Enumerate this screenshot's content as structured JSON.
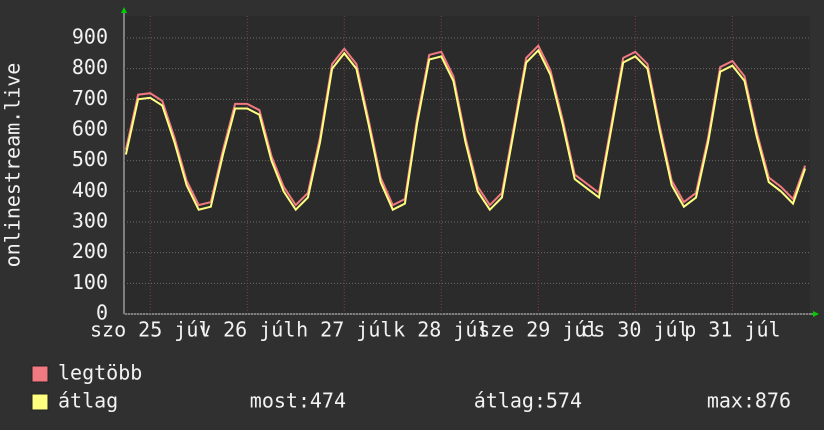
{
  "chart_data": {
    "type": "line",
    "ylabel": "onlinestream.live",
    "xlim": [
      25.23,
      32.3
    ],
    "ylim": [
      0,
      900
    ],
    "yticks": [
      0,
      100,
      200,
      300,
      400,
      500,
      600,
      700,
      800,
      900
    ],
    "xticks": [
      {
        "value": 25.5,
        "label": "szo 25 júl"
      },
      {
        "value": 26.5,
        "label": "v 26 júl"
      },
      {
        "value": 27.5,
        "label": "h 27 júl"
      },
      {
        "value": 28.5,
        "label": "k 28 júl"
      },
      {
        "value": 29.5,
        "label": "sze 29 júl"
      },
      {
        "value": 30.5,
        "label": "cs 30 júl"
      },
      {
        "value": 31.5,
        "label": "p 31 júl"
      }
    ],
    "grid": true,
    "x": [
      25.25,
      25.375,
      25.5,
      25.625,
      25.75,
      25.875,
      26,
      26.125,
      26.25,
      26.375,
      26.5,
      26.625,
      26.75,
      26.875,
      27,
      27.125,
      27.25,
      27.375,
      27.5,
      27.625,
      27.75,
      27.875,
      28,
      28.125,
      28.25,
      28.375,
      28.5,
      28.625,
      28.75,
      28.875,
      29,
      29.125,
      29.25,
      29.375,
      29.5,
      29.625,
      29.75,
      29.875,
      30,
      30.125,
      30.25,
      30.375,
      30.5,
      30.625,
      30.75,
      30.875,
      31,
      31.125,
      31.25,
      31.375,
      31.5,
      31.625,
      31.75,
      31.875,
      32,
      32.125,
      32.25
    ],
    "series": [
      {
        "name": "legtöbb",
        "color": "#f07a80",
        "values": [
          535,
          715,
          720,
          695,
          575,
          435,
          355,
          365,
          535,
          685,
          685,
          665,
          515,
          415,
          355,
          395,
          575,
          815,
          865,
          815,
          635,
          445,
          355,
          375,
          635,
          845,
          855,
          775,
          575,
          415,
          355,
          395,
          615,
          835,
          875,
          795,
          635,
          455,
          425,
          395,
          615,
          835,
          855,
          815,
          615,
          435,
          365,
          395,
          575,
          805,
          825,
          775,
          595,
          445,
          415,
          375,
          484
        ]
      },
      {
        "name": "átlag",
        "color": "#ffff80",
        "values": [
          520,
          700,
          705,
          680,
          560,
          420,
          340,
          350,
          520,
          670,
          670,
          650,
          500,
          400,
          340,
          380,
          560,
          800,
          850,
          800,
          620,
          430,
          340,
          360,
          620,
          830,
          840,
          760,
          560,
          400,
          340,
          380,
          600,
          820,
          860,
          780,
          620,
          440,
          410,
          380,
          600,
          820,
          840,
          800,
          600,
          420,
          350,
          380,
          560,
          790,
          810,
          760,
          580,
          430,
          400,
          360,
          474
        ]
      }
    ],
    "stats": [
      {
        "label": "most:",
        "value": 474
      },
      {
        "label": "átlag:",
        "value": 574
      },
      {
        "label": "max:",
        "value": 876
      }
    ]
  }
}
